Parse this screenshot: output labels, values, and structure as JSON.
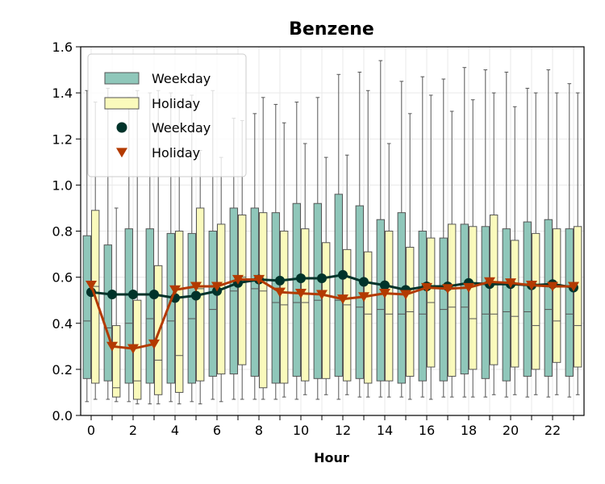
{
  "chart_data": {
    "type": "box",
    "title": "Benzene",
    "xlabel": "Hour",
    "ylabel": "",
    "ylim": [
      0.0,
      1.6
    ],
    "xlim": [
      -0.5,
      23.5
    ],
    "grid": true,
    "legend_position": "upper-left",
    "x_ticks": [
      0,
      2,
      4,
      6,
      8,
      10,
      12,
      14,
      16,
      18,
      20,
      22
    ],
    "x_tick_labels": [
      "0",
      "2",
      "4",
      "6",
      "8",
      "10",
      "12",
      "14",
      "16",
      "18",
      "20",
      "22"
    ],
    "y_ticks": [
      0.0,
      0.2,
      0.4,
      0.6,
      0.8,
      1.0,
      1.2,
      1.4,
      1.6
    ],
    "y_tick_labels": [
      "0.0",
      "0.2",
      "0.4",
      "0.6",
      "0.8",
      "1.0",
      "1.2",
      "1.4",
      "1.6"
    ],
    "hours": [
      0,
      1,
      2,
      3,
      4,
      5,
      6,
      7,
      8,
      9,
      10,
      11,
      12,
      13,
      14,
      15,
      16,
      17,
      18,
      19,
      20,
      21,
      22,
      23
    ],
    "legend": [
      {
        "label": "Weekday",
        "kind": "box",
        "color": "#8fc7ba"
      },
      {
        "label": "Holiday",
        "kind": "box",
        "color": "#fafabc"
      },
      {
        "label": "Weekday",
        "kind": "circle",
        "color": "#00332a"
      },
      {
        "label": "Holiday",
        "kind": "triangle",
        "color": "#b33a00"
      }
    ],
    "box_series": [
      {
        "name": "Weekday",
        "color": "#8fc7ba",
        "whisker_low": [
          0.06,
          0.07,
          0.06,
          0.05,
          0.06,
          0.06,
          0.07,
          0.07,
          0.07,
          0.07,
          0.07,
          0.07,
          0.07,
          0.08,
          0.08,
          0.08,
          0.08,
          0.08,
          0.08,
          0.08,
          0.08,
          0.08,
          0.08,
          0.08
        ],
        "q1": [
          0.16,
          0.15,
          0.14,
          0.14,
          0.14,
          0.14,
          0.17,
          0.18,
          0.17,
          0.14,
          0.17,
          0.16,
          0.17,
          0.16,
          0.15,
          0.14,
          0.15,
          0.15,
          0.18,
          0.16,
          0.15,
          0.17,
          0.17,
          0.17
        ],
        "median": [
          0.41,
          0.38,
          0.4,
          0.42,
          0.41,
          0.42,
          0.46,
          0.54,
          0.55,
          0.49,
          0.49,
          0.5,
          0.5,
          0.47,
          0.46,
          0.44,
          0.44,
          0.46,
          0.47,
          0.44,
          0.45,
          0.45,
          0.46,
          0.44
        ],
        "q3": [
          0.78,
          0.74,
          0.81,
          0.81,
          0.79,
          0.79,
          0.8,
          0.9,
          0.9,
          0.88,
          0.92,
          0.92,
          0.96,
          0.91,
          0.85,
          0.88,
          0.8,
          0.77,
          0.83,
          0.82,
          0.81,
          0.84,
          0.85,
          0.81
        ],
        "whisker_high": [
          1.41,
          1.42,
          1.38,
          1.4,
          1.4,
          1.39,
          1.41,
          1.29,
          1.31,
          1.35,
          1.36,
          1.38,
          1.48,
          1.49,
          1.54,
          1.45,
          1.47,
          1.46,
          1.51,
          1.5,
          1.49,
          1.42,
          1.5,
          1.44
        ]
      },
      {
        "name": "Holiday",
        "color": "#fafabc",
        "whisker_low": [
          0.07,
          0.06,
          0.05,
          0.05,
          0.05,
          0.05,
          0.06,
          0.07,
          0.07,
          0.08,
          0.09,
          0.09,
          0.09,
          0.08,
          0.08,
          0.07,
          0.07,
          0.08,
          0.08,
          0.09,
          0.09,
          0.09,
          0.09,
          0.09
        ],
        "q1": [
          0.14,
          0.08,
          0.07,
          0.09,
          0.1,
          0.15,
          0.18,
          0.22,
          0.12,
          0.14,
          0.15,
          0.16,
          0.15,
          0.14,
          0.15,
          0.17,
          0.21,
          0.17,
          0.2,
          0.22,
          0.21,
          0.2,
          0.23,
          0.21
        ],
        "median": [
          0.56,
          0.12,
          0.15,
          0.24,
          0.26,
          0.55,
          0.57,
          0.6,
          0.54,
          0.48,
          0.49,
          0.52,
          0.48,
          0.44,
          0.44,
          0.45,
          0.49,
          0.47,
          0.42,
          0.44,
          0.43,
          0.39,
          0.41,
          0.39
        ],
        "q3": [
          0.89,
          0.39,
          0.5,
          0.65,
          0.8,
          0.9,
          0.83,
          0.87,
          0.88,
          0.8,
          0.81,
          0.75,
          0.72,
          0.71,
          0.8,
          0.73,
          0.77,
          0.83,
          0.82,
          0.87,
          0.76,
          0.79,
          0.81,
          0.82
        ],
        "whisker_high": [
          1.36,
          0.9,
          1.41,
          1.41,
          1.36,
          1.15,
          1.12,
          1.28,
          1.38,
          1.27,
          1.18,
          1.12,
          1.13,
          1.41,
          1.18,
          1.31,
          1.39,
          1.32,
          1.37,
          1.4,
          1.34,
          1.4,
          1.4,
          1.4
        ]
      }
    ],
    "line_series": [
      {
        "name": "Weekday",
        "marker": "circle",
        "color": "#00332a",
        "values": [
          0.535,
          0.525,
          0.525,
          0.525,
          0.51,
          0.52,
          0.54,
          0.575,
          0.59,
          0.585,
          0.595,
          0.595,
          0.61,
          0.58,
          0.565,
          0.545,
          0.56,
          0.56,
          0.575,
          0.57,
          0.57,
          0.565,
          0.57,
          0.555
        ]
      },
      {
        "name": "Holiday",
        "marker": "triangle",
        "color": "#b33a00",
        "values": [
          0.565,
          0.3,
          0.29,
          0.31,
          0.545,
          0.56,
          0.56,
          0.59,
          0.59,
          0.535,
          0.53,
          0.525,
          0.505,
          0.515,
          0.53,
          0.525,
          0.555,
          0.55,
          0.555,
          0.58,
          0.575,
          0.565,
          0.56,
          0.56
        ]
      }
    ]
  }
}
